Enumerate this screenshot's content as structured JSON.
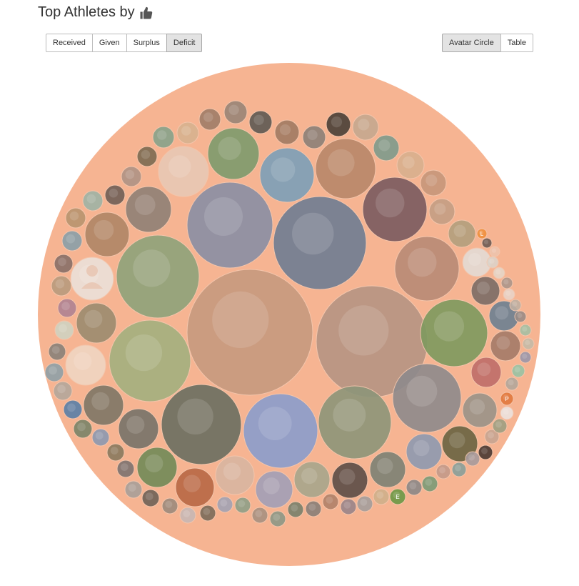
{
  "header": {
    "title": "Top Athletes by",
    "icon": "thumbs-up-icon"
  },
  "metric_toggle": {
    "options": [
      "Received",
      "Given",
      "Surplus",
      "Deficit"
    ],
    "active": "Deficit"
  },
  "view_toggle": {
    "options": [
      "Avatar Circle",
      "Table"
    ],
    "active": "Avatar Circle"
  },
  "avatar_circle": {
    "fill_color": "#f8b89a",
    "outer_color": "#f6b08f",
    "initials_badges": [
      "L",
      "P",
      "E"
    ],
    "badge_colors": [
      "#f0903d",
      "#e8782e",
      "#6a9a3a"
    ]
  }
}
